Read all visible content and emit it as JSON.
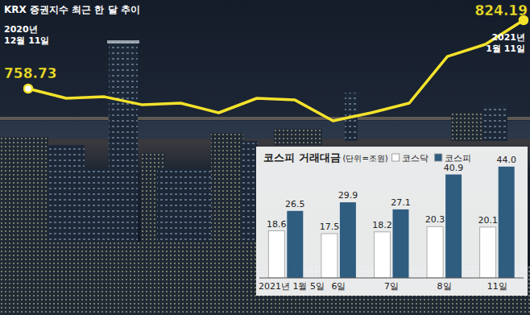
{
  "chart_data": [
    {
      "type": "line",
      "title": "KRX 증권지수 최근 한 달 추이",
      "categories": [
        "2020년 12월 11일",
        null,
        null,
        null,
        null,
        null,
        null,
        null,
        null,
        null,
        null,
        null,
        null,
        "2021년 1월 11일"
      ],
      "values": [
        758.73,
        749.5,
        751.0,
        743.3,
        744.9,
        735.6,
        749.5,
        747.9,
        727.9,
        735.6,
        744.9,
        789.5,
        801.1,
        824.19
      ],
      "value_labels": [
        "758.73",
        null,
        null,
        null,
        null,
        null,
        null,
        null,
        null,
        null,
        null,
        null,
        null,
        "824.19"
      ],
      "color": "#f3e22b",
      "marker": "circle",
      "ylim": [
        720,
        830
      ],
      "tick_labels": false,
      "data_labels": true,
      "grid": false
    },
    {
      "type": "bar",
      "title": "코스피 거래대금",
      "subtitle": "(단위=조원)",
      "categories": [
        "2021년 1월 5일",
        "6일",
        "7일",
        "8일",
        "11일"
      ],
      "series": [
        {
          "name": "코스닥",
          "color": "#ffffff",
          "values": [
            18.6,
            17.5,
            18.2,
            20.3,
            20.1
          ]
        },
        {
          "name": "코스피",
          "color": "#2f5d80",
          "values": [
            26.5,
            29.9,
            27.1,
            40.9,
            44.0
          ],
          "value_labels": [
            "26.5",
            "29.9",
            "27.1",
            "40.9",
            "44.0"
          ]
        }
      ],
      "ylim": [
        0,
        47
      ],
      "legend": "top",
      "data_labels": true,
      "tick_labels": "x",
      "grid": false
    }
  ]
}
